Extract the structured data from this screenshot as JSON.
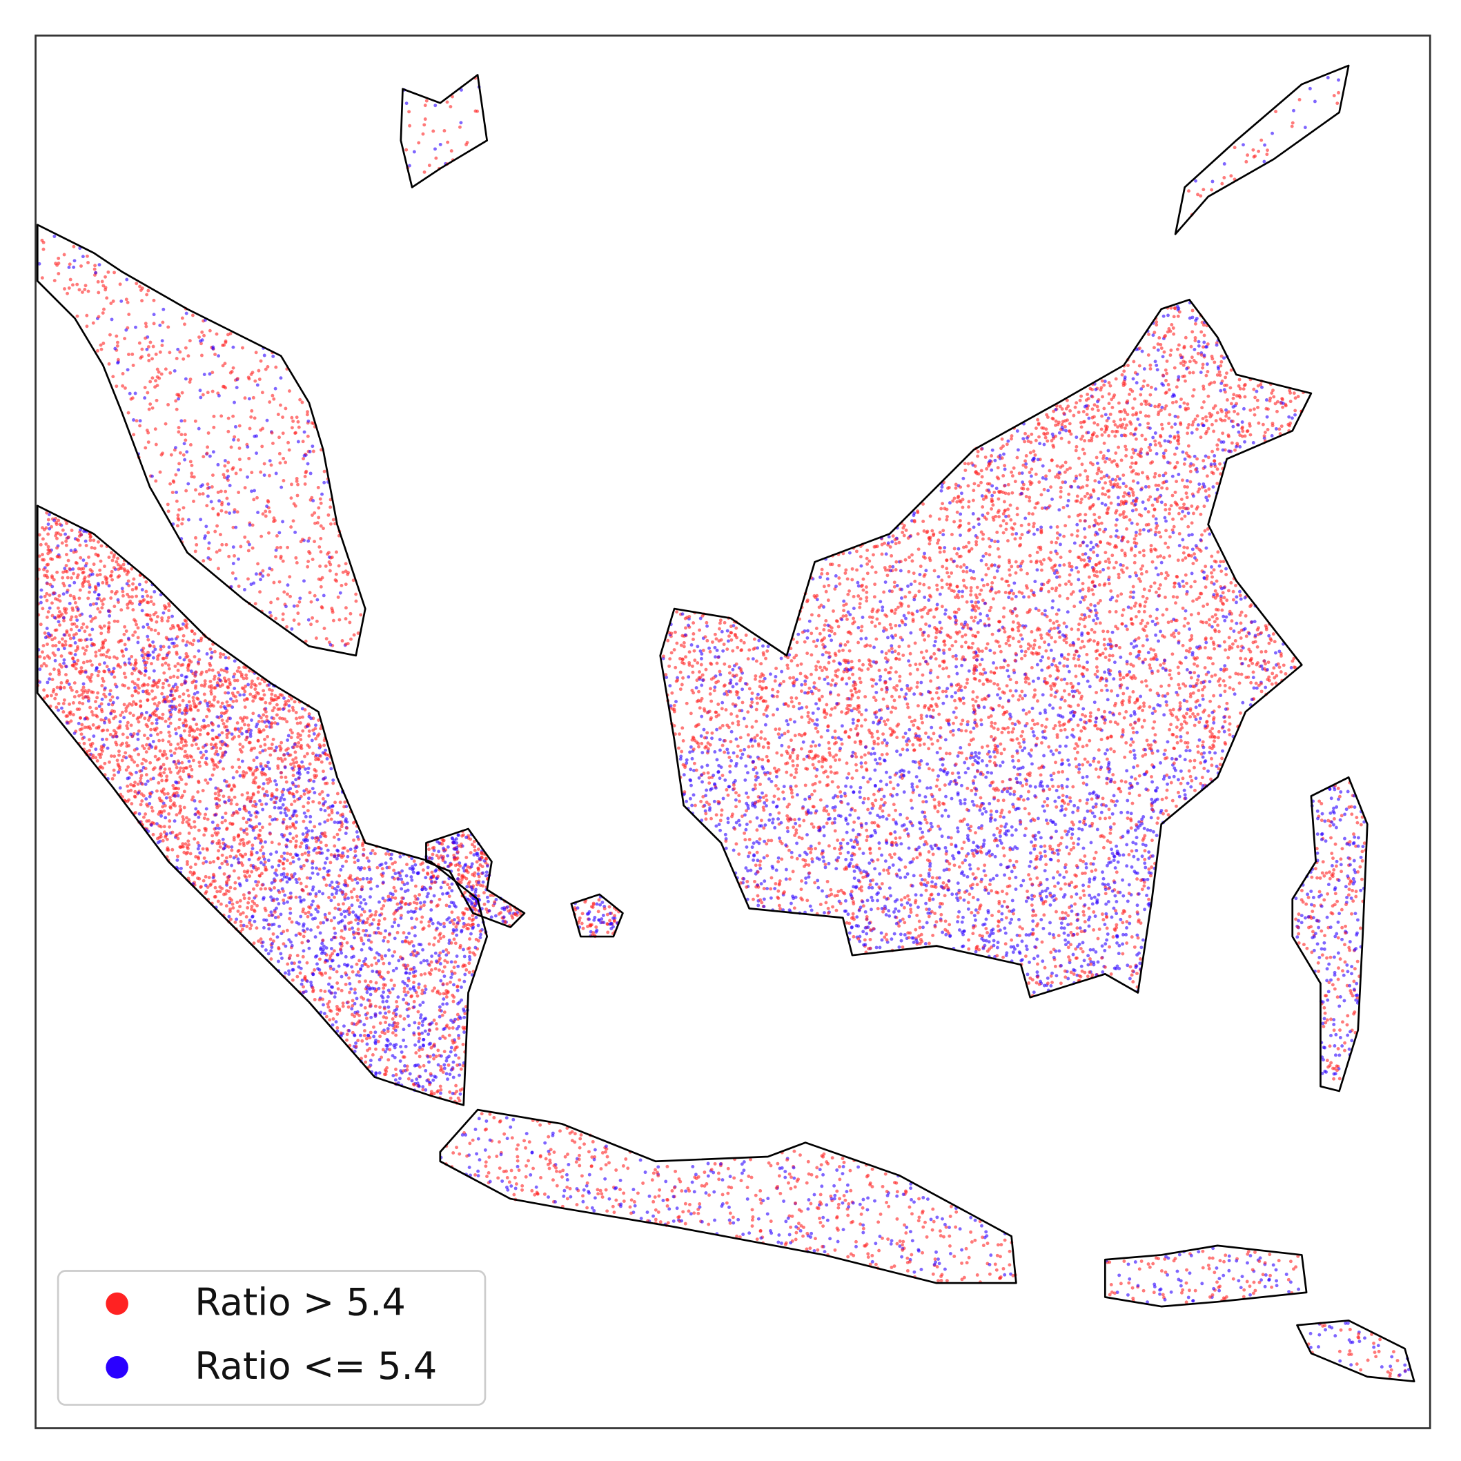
{
  "legend": {
    "items": [
      {
        "label": "Ratio > 5.4",
        "color": "#ff2222"
      },
      {
        "label": "Ratio <= 5.4",
        "color": "#2a00ff"
      }
    ]
  }
}
